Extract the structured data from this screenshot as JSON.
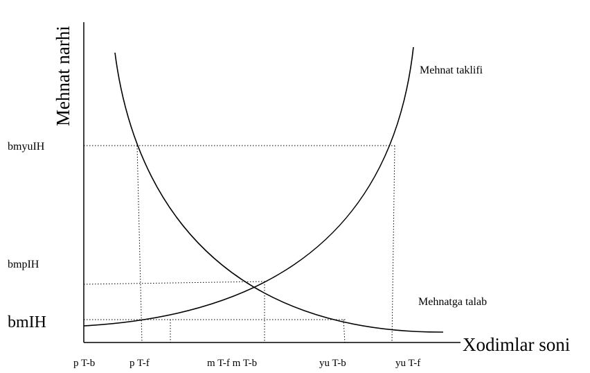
{
  "axes": {
    "y_title": "Mehnat narhi",
    "x_title": "Xodimlar soni"
  },
  "curves": {
    "supply_label": "Mehnat taklifi",
    "demand_label": "Mehnatga talab"
  },
  "y_levels": {
    "high": "bmyuIH",
    "mid": "bmpIH",
    "low": "bmIH"
  },
  "x_ticks": {
    "p_tb": "p T-b",
    "p_tf": "p T-f",
    "m_tf_tb": "m T-f m T-b",
    "yu_tb": "yu T-b",
    "yu_tf": "yu T-f"
  }
}
